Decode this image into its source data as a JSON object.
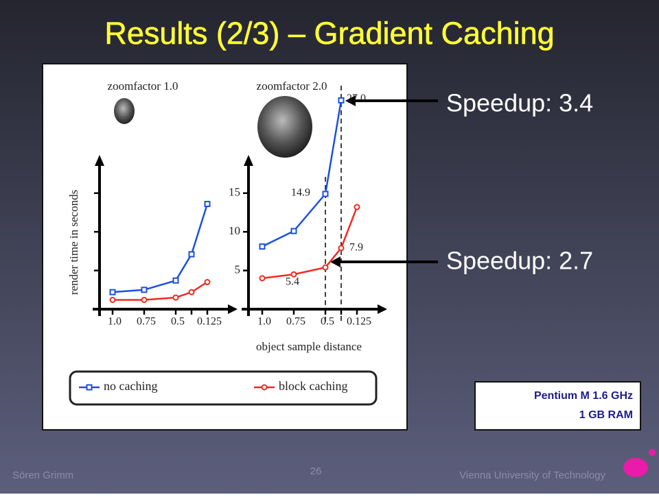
{
  "title": "Results (2/3) – Gradient Caching",
  "annotations": [
    "Speedup: 3.4",
    "Speedup: 2.7"
  ],
  "specs": [
    "Pentium M 1.6 GHz",
    "1 GB RAM"
  ],
  "footer": {
    "author": "Sören Grimm",
    "page": "26",
    "institution": "Vienna University of Technology"
  },
  "chart_data": [
    {
      "type": "line",
      "title": "zoomfactor 1.0",
      "y_label": "render time in seconds",
      "categories": [
        "1.0",
        "0.75",
        "0.5",
        null,
        "0.125"
      ],
      "ylim": [
        0,
        18.7
      ],
      "yticks": [
        5,
        10,
        15
      ],
      "tick_labels": false,
      "series": [
        {
          "name": "no caching",
          "color": "#1a4fe0",
          "marker": "square",
          "values": [
            2.2,
            2.5,
            3.7,
            7.1,
            13.6
          ]
        },
        {
          "name": "block caching",
          "color": "#f02a20",
          "marker": "circle",
          "values": [
            1.2,
            1.2,
            1.5,
            2.2,
            3.5
          ]
        }
      ]
    },
    {
      "type": "line",
      "title": "zoomfactor 2.0",
      "x_label": "object sample distance",
      "categories": [
        "1.0",
        "0.75",
        "0.5",
        null,
        "0.125"
      ],
      "ylim": [
        0,
        18.7
      ],
      "yticks": [
        5,
        10,
        15
      ],
      "tick_labels": true,
      "series": [
        {
          "name": "no caching",
          "color": "#1a4fe0",
          "marker": "square",
          "values": [
            8.1,
            10.1,
            14.9,
            27.0,
            null
          ],
          "value_labels": [
            null,
            null,
            "14.9",
            "27.0",
            null
          ]
        },
        {
          "name": "block caching",
          "color": "#f02a20",
          "marker": "circle",
          "values": [
            4.0,
            4.5,
            5.4,
            7.9,
            13.2
          ],
          "value_labels": [
            null,
            null,
            "5.4",
            "7.9",
            null
          ]
        }
      ]
    }
  ]
}
